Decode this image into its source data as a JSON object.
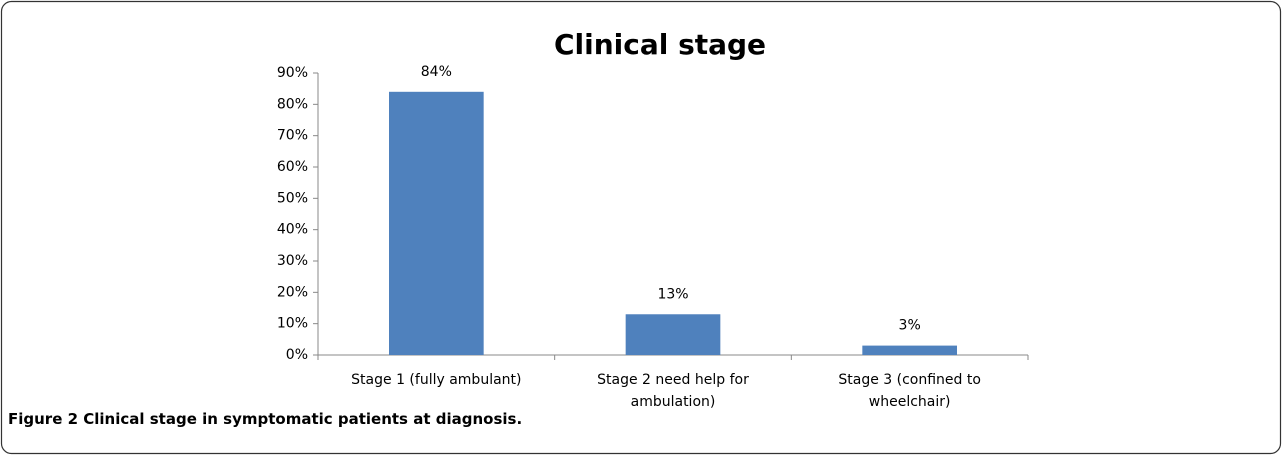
{
  "chart_data": {
    "type": "bar",
    "title": "Clinical stage",
    "categories": [
      "Stage 1 (fully ambulant)",
      "Stage 2 need help for ambulation)",
      "Stage 3 (confined to wheelchair)"
    ],
    "values": [
      84,
      13,
      3
    ],
    "value_labels": [
      "84%",
      "13%",
      "3%"
    ],
    "color": "#4f81bd",
    "ylim": [
      0,
      90
    ],
    "yticks": [
      {
        "value": 0,
        "label": "0%"
      },
      {
        "value": 10,
        "label": "10%"
      },
      {
        "value": 20,
        "label": "20%"
      },
      {
        "value": 30,
        "label": "30%"
      },
      {
        "value": 40,
        "label": "40%"
      },
      {
        "value": 50,
        "label": "50%"
      },
      {
        "value": 60,
        "label": "60%"
      },
      {
        "value": 70,
        "label": "70%"
      },
      {
        "value": 80,
        "label": "80%"
      },
      {
        "value": 90,
        "label": "90%"
      }
    ],
    "grid": false
  },
  "caption": "Figure 2 Clinical stage in symptomatic patients at diagnosis."
}
